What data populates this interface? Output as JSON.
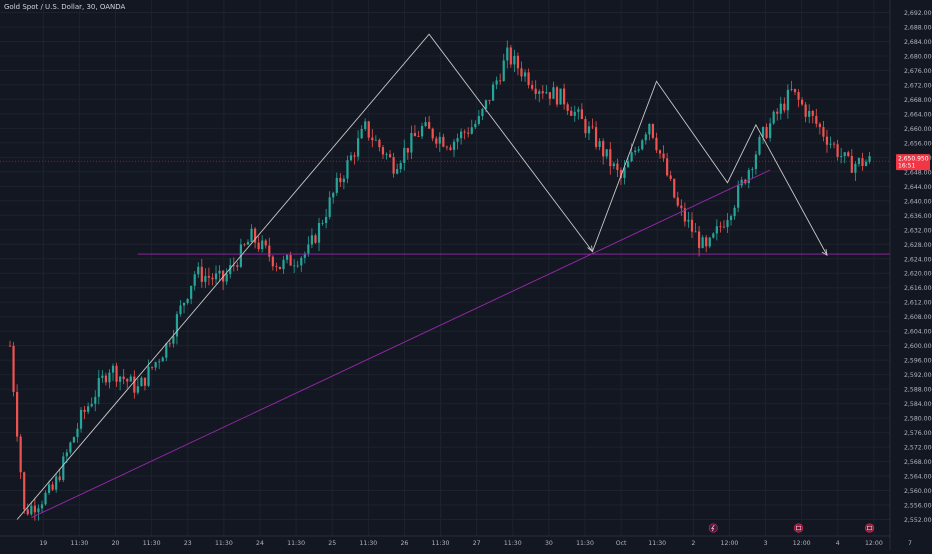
{
  "header": {
    "title": "Gold Spot / U.S. Dollar, 30, OANDA"
  },
  "colors": {
    "background": "#131722",
    "grid": "#1e222d",
    "up": "#26a69a",
    "down": "#ef5350",
    "text": "#b2b5be",
    "trendline": "#9c27b0",
    "drawing": "#c8c8c8",
    "price_badge": "#f23645"
  },
  "chart_data": {
    "type": "candlestick",
    "symbol": "Gold Spot / U.S. Dollar",
    "interval": "30",
    "source": "OANDA",
    "ylim": [
      2548,
      2696
    ],
    "y_ticks": [
      "2,692.000",
      "2,688.000",
      "2,684.000",
      "2,680.000",
      "2,676.000",
      "2,672.000",
      "2,668.000",
      "2,664.000",
      "2,660.000",
      "2,656.000",
      "2,652.000",
      "2,648.000",
      "2,644.000",
      "2,640.000",
      "2,636.000",
      "2,632.000",
      "2,628.000",
      "2,624.000",
      "2,620.000",
      "2,616.000",
      "2,612.000",
      "2,608.000",
      "2,604.000",
      "2,600.000",
      "2,596.000",
      "2,592.000",
      "2,588.000",
      "2,584.000",
      "2,580.000",
      "2,576.000",
      "2,572.000",
      "2,568.000",
      "2,564.000",
      "2,560.000",
      "2,556.000",
      "2,552.000"
    ],
    "x_ticks": [
      "19",
      "11:30",
      "20",
      "11:30",
      "23",
      "11:30",
      "24",
      "11:30",
      "25",
      "11:30",
      "26",
      "11:30",
      "27",
      "11:30",
      "30",
      "11:30",
      "Oct",
      "11:30",
      "2",
      "12:00",
      "3",
      "12:00",
      "4",
      "12:00",
      "7"
    ],
    "x_range": [
      0,
      125
    ],
    "last_price": {
      "label": "2,650.950",
      "countdown": "16:51",
      "value": 2650.95
    },
    "anchors": [
      [
        0,
        2600
      ],
      [
        2,
        2554
      ],
      [
        6,
        2560
      ],
      [
        10,
        2580
      ],
      [
        14,
        2594
      ],
      [
        18,
        2588
      ],
      [
        22,
        2600
      ],
      [
        26,
        2620
      ],
      [
        30,
        2618
      ],
      [
        34,
        2630
      ],
      [
        38,
        2622
      ],
      [
        42,
        2626
      ],
      [
        46,
        2644
      ],
      [
        50,
        2660
      ],
      [
        54,
        2650
      ],
      [
        58,
        2660
      ],
      [
        62,
        2656
      ],
      [
        66,
        2662
      ],
      [
        70,
        2680
      ],
      [
        74,
        2672
      ],
      [
        78,
        2668
      ],
      [
        82,
        2658
      ],
      [
        86,
        2646
      ],
      [
        90,
        2662
      ],
      [
        94,
        2638
      ],
      [
        98,
        2626
      ],
      [
        102,
        2640
      ],
      [
        106,
        2658
      ],
      [
        110,
        2670
      ],
      [
        114,
        2660
      ],
      [
        118,
        2650
      ],
      [
        121,
        2651
      ]
    ],
    "hline": {
      "value": 2625.3,
      "x_start": 18
    },
    "trendline": {
      "x1": 3,
      "y1": 2552.5,
      "x2": 107,
      "y2": 2648.5
    },
    "pattern_path": [
      [
        1,
        2552
      ],
      [
        59,
        2686
      ],
      [
        82,
        2626
      ],
      [
        91,
        2673
      ],
      [
        101,
        2645
      ],
      [
        105,
        2661
      ],
      [
        115,
        2625
      ]
    ],
    "events": [
      {
        "x": 99,
        "icon": "lightning-icon"
      },
      {
        "x": 111,
        "icon": "calendar-flag-icon"
      },
      {
        "x": 121,
        "icon": "calendar-flag-icon"
      }
    ]
  }
}
